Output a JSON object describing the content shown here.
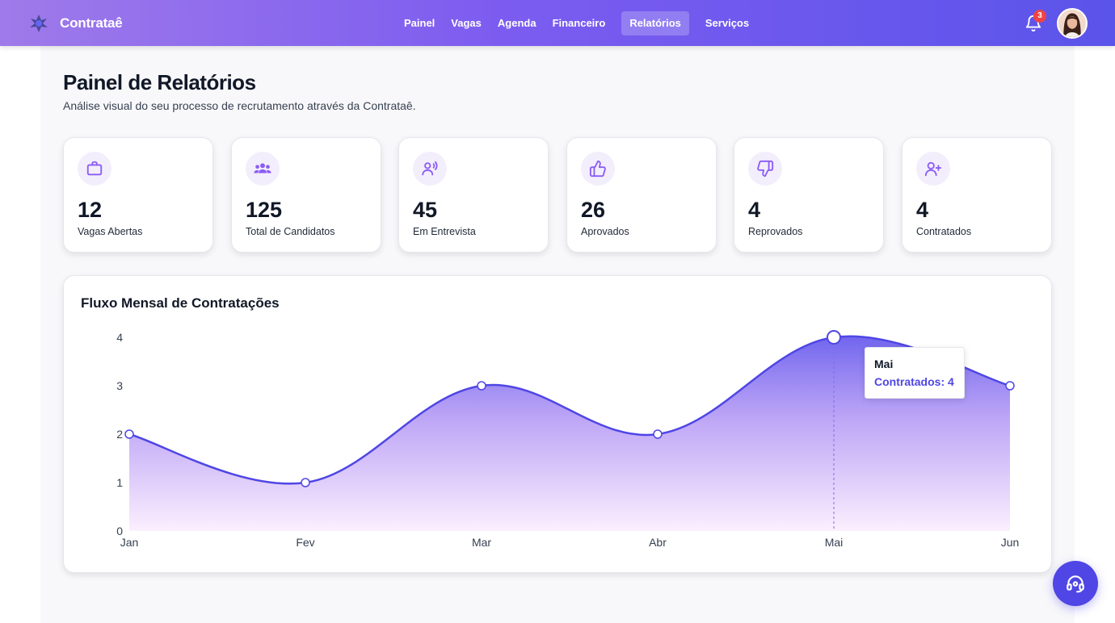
{
  "header": {
    "brand": "Contrataê",
    "nav": [
      {
        "label": "Painel",
        "active": false
      },
      {
        "label": "Vagas",
        "active": false
      },
      {
        "label": "Agenda",
        "active": false
      },
      {
        "label": "Financeiro",
        "active": false
      },
      {
        "label": "Relatórios",
        "active": true
      },
      {
        "label": "Serviços",
        "active": false
      }
    ],
    "notification_count": "3"
  },
  "page": {
    "title": "Painel de Relatórios",
    "subtitle": "Análise visual do seu processo de recrutamento através da Contrataê."
  },
  "stats": [
    {
      "value": "12",
      "label": "Vagas Abertas",
      "icon": "briefcase-icon"
    },
    {
      "value": "125",
      "label": "Total de Candidatos",
      "icon": "users-group-icon"
    },
    {
      "value": "45",
      "label": "Em Entrevista",
      "icon": "user-voice-icon"
    },
    {
      "value": "26",
      "label": "Aprovados",
      "icon": "thumbs-up-icon"
    },
    {
      "value": "4",
      "label": "Reprovados",
      "icon": "thumbs-down-icon"
    },
    {
      "value": "4",
      "label": "Contratados",
      "icon": "user-plus-icon"
    }
  ],
  "chart": {
    "title": "Fluxo Mensal de Contratações",
    "tooltip": {
      "title": "Mai",
      "value": "Contratados: 4"
    }
  },
  "chart_data": {
    "type": "area",
    "title": "Fluxo Mensal de Contratações",
    "categories": [
      "Jan",
      "Fev",
      "Mar",
      "Abr",
      "Mai",
      "Jun"
    ],
    "series": [
      {
        "name": "Contratados",
        "values": [
          2,
          1,
          3,
          2,
          4,
          3
        ]
      }
    ],
    "ylim": [
      0,
      4
    ],
    "yticks": [
      0,
      1,
      2,
      3,
      4
    ],
    "grid": false,
    "highlighted": "Mai",
    "colors": {
      "line": "#4f46e5",
      "fill_top": "#7c6cf0",
      "fill_bottom": "#fcefff"
    }
  },
  "colors": {
    "accent": "#4f46e5",
    "icon": "#8b5cf6"
  }
}
